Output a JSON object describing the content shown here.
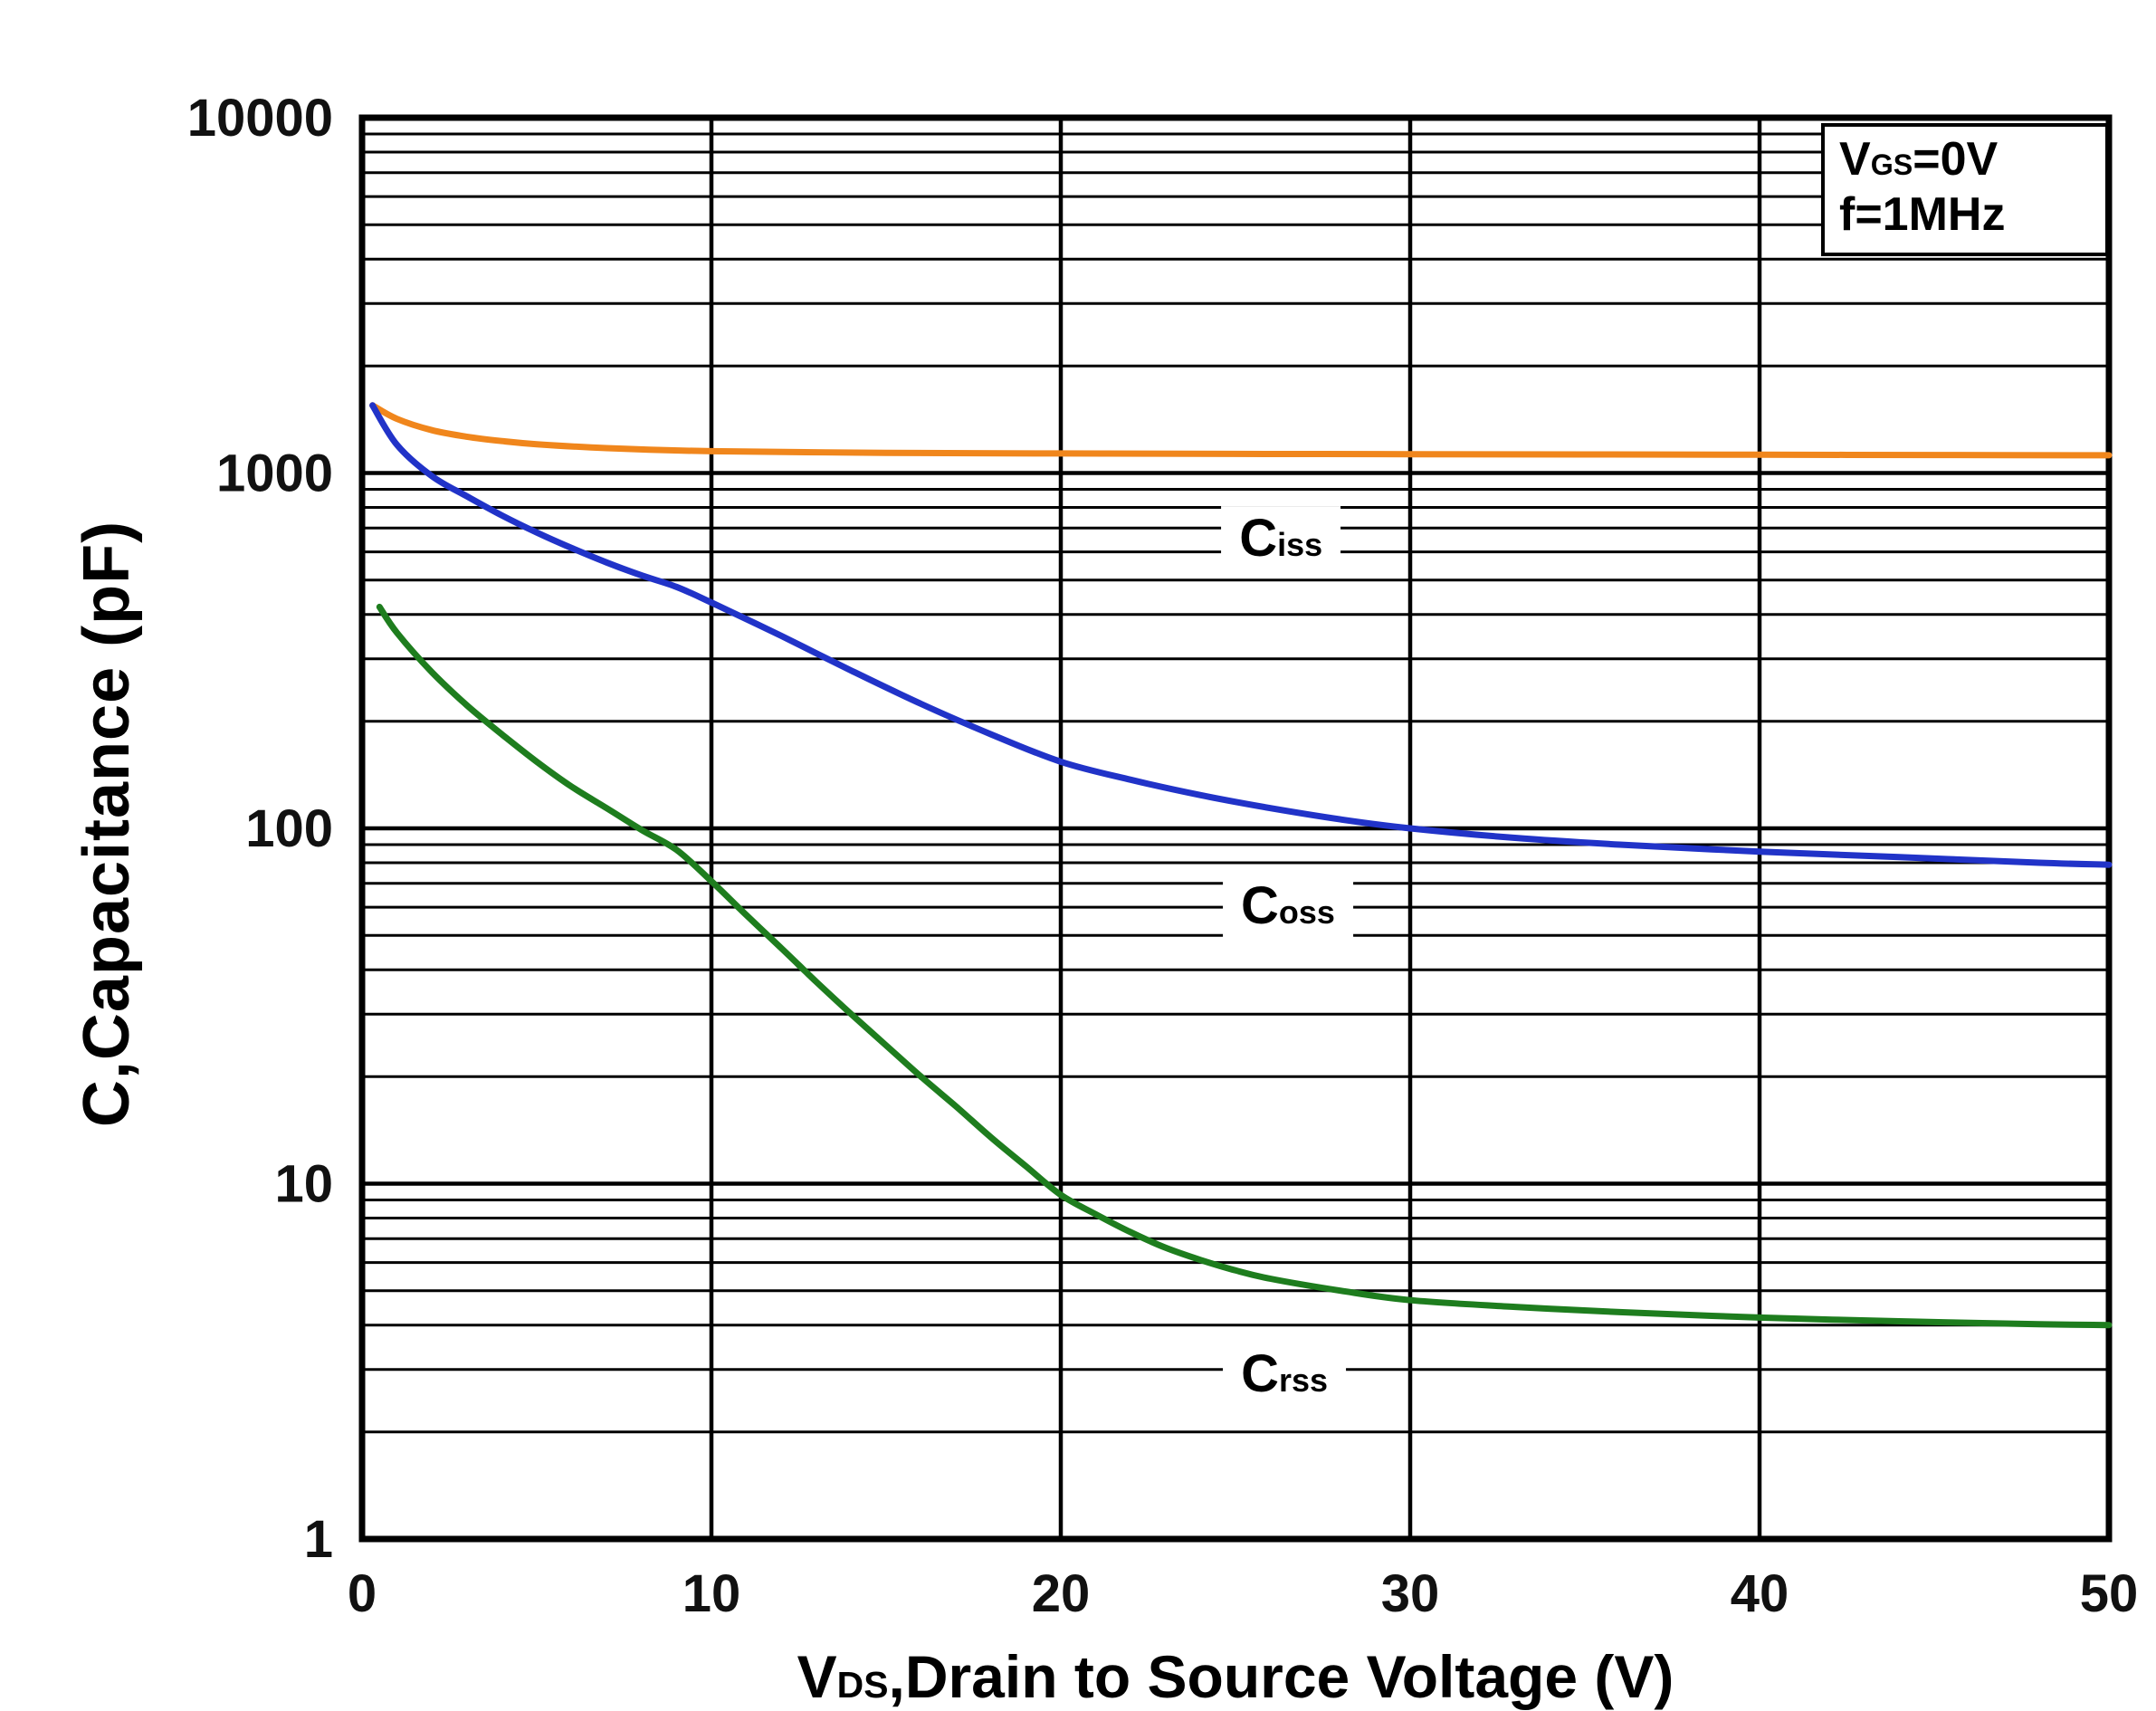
{
  "chart_data": {
    "type": "line",
    "title": "",
    "ylabel": "C,Capacitance (pF)",
    "xlabel": {
      "pre": "V",
      "sub": "DS",
      "post": ",Drain to Source Voltage (V)"
    },
    "xlim": [
      0,
      50
    ],
    "ylim": [
      1,
      10000
    ],
    "y_scale": "log",
    "x_ticks": [
      0,
      10,
      20,
      30,
      40,
      50
    ],
    "y_ticks": [
      1,
      10,
      100,
      1000,
      10000
    ],
    "grid": true,
    "legend_position": "inline-curve-labels",
    "conditions": [
      {
        "pre": "V",
        "sub": "GS",
        "post": "=0V"
      },
      {
        "pre": "f=1MHz",
        "sub": "",
        "post": ""
      }
    ],
    "series": [
      {
        "name": "Ciss",
        "label": {
          "pre": "C",
          "sub": "iss"
        },
        "color": "#F0861C",
        "label_at": {
          "x": 26.3,
          "y": 650
        },
        "points": [
          [
            0.3,
            1550
          ],
          [
            1,
            1420
          ],
          [
            2,
            1320
          ],
          [
            3,
            1265
          ],
          [
            4,
            1230
          ],
          [
            5,
            1205
          ],
          [
            7,
            1175
          ],
          [
            10,
            1152
          ],
          [
            15,
            1140
          ],
          [
            20,
            1135
          ],
          [
            25,
            1132
          ],
          [
            30,
            1130
          ],
          [
            35,
            1128
          ],
          [
            40,
            1126
          ],
          [
            45,
            1124
          ],
          [
            50,
            1122
          ]
        ]
      },
      {
        "name": "Coss",
        "label": {
          "pre": "C",
          "sub": "oss"
        },
        "color": "#2133C8",
        "label_at": {
          "x": 26.5,
          "y": 60
        },
        "points": [
          [
            0.3,
            1550
          ],
          [
            1,
            1200
          ],
          [
            2,
            980
          ],
          [
            3,
            860
          ],
          [
            4,
            760
          ],
          [
            5,
            680
          ],
          [
            6,
            615
          ],
          [
            7,
            560
          ],
          [
            8,
            515
          ],
          [
            9,
            478
          ],
          [
            10,
            432
          ],
          [
            12,
            348
          ],
          [
            14,
            278
          ],
          [
            16,
            224
          ],
          [
            18,
            184
          ],
          [
            20,
            154
          ],
          [
            22,
            137
          ],
          [
            24,
            124
          ],
          [
            26,
            114
          ],
          [
            28,
            106
          ],
          [
            30,
            100
          ],
          [
            33,
            94
          ],
          [
            36,
            90
          ],
          [
            40,
            86
          ],
          [
            44,
            83
          ],
          [
            48,
            80
          ],
          [
            50,
            79
          ]
        ]
      },
      {
        "name": "Crss",
        "label": {
          "pre": "C",
          "sub": "rss"
        },
        "color": "#1E7D1E",
        "label_at": {
          "x": 26.4,
          "y": 2.9
        },
        "points": [
          [
            0.5,
            420
          ],
          [
            1,
            355
          ],
          [
            2,
            275
          ],
          [
            3,
            222
          ],
          [
            4,
            184
          ],
          [
            5,
            154
          ],
          [
            6,
            131
          ],
          [
            7,
            114
          ],
          [
            8,
            99
          ],
          [
            9,
            87
          ],
          [
            10,
            71
          ],
          [
            11,
            57
          ],
          [
            12,
            46
          ],
          [
            13,
            37
          ],
          [
            14,
            30
          ],
          [
            15,
            24.5
          ],
          [
            16,
            20
          ],
          [
            17,
            16.5
          ],
          [
            18,
            13.5
          ],
          [
            19,
            11.2
          ],
          [
            20,
            9.3
          ],
          [
            21,
            8.2
          ],
          [
            22,
            7.3
          ],
          [
            23,
            6.6
          ],
          [
            24,
            6.1
          ],
          [
            25,
            5.7
          ],
          [
            26,
            5.4
          ],
          [
            28,
            5.0
          ],
          [
            30,
            4.7
          ],
          [
            33,
            4.5
          ],
          [
            36,
            4.35
          ],
          [
            40,
            4.2
          ],
          [
            44,
            4.1
          ],
          [
            48,
            4.02
          ],
          [
            50,
            4.0
          ]
        ]
      }
    ]
  }
}
